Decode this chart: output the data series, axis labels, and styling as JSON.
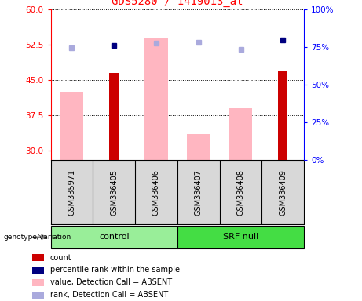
{
  "title": "GDS5280 / 1419013_at",
  "samples": [
    "GSM335971",
    "GSM336405",
    "GSM336406",
    "GSM336407",
    "GSM336408",
    "GSM336409"
  ],
  "ylim_left": [
    28,
    60
  ],
  "ylim_right": [
    0,
    100
  ],
  "yticks_left": [
    30,
    37.5,
    45,
    52.5,
    60
  ],
  "yticks_right": [
    0,
    25,
    50,
    75,
    100
  ],
  "red_bars": [
    null,
    46.5,
    null,
    null,
    null,
    47.0
  ],
  "pink_bars": [
    42.5,
    null,
    54.0,
    33.5,
    39.0,
    null
  ],
  "blue_squares_left_val": [
    null,
    52.2,
    null,
    null,
    null,
    53.5
  ],
  "light_blue_squares_left_val": [
    51.8,
    null,
    52.7,
    53.0,
    51.5,
    null
  ],
  "red_bar_color": "#CC0000",
  "pink_bar_color": "#FFB6C1",
  "blue_sq_color": "#000080",
  "light_blue_sq_color": "#AAAADD",
  "control_color": "#99EE99",
  "srfnull_color": "#44DD44",
  "legend_items": [
    {
      "label": "count",
      "color": "#CC0000"
    },
    {
      "label": "percentile rank within the sample",
      "color": "#000080"
    },
    {
      "label": "value, Detection Call = ABSENT",
      "color": "#FFB6C1"
    },
    {
      "label": "rank, Detection Call = ABSENT",
      "color": "#AAAADD"
    }
  ]
}
